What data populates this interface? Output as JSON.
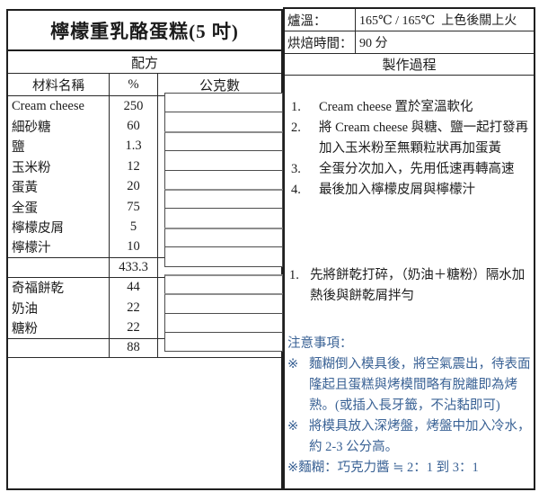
{
  "title": "檸檬重乳酪蛋糕(5 吋)",
  "oven": {
    "temp_label": "爐溫：",
    "temp_value": "165℃ / 165℃ 上色後關上火",
    "time_label": "烘焙時間：",
    "time_value": "90 分"
  },
  "recipe": {
    "header": "配方",
    "columns": {
      "name": "材料名稱",
      "percent": "%",
      "grams": "公克數"
    },
    "group1": {
      "rows": [
        {
          "name": "Cream cheese",
          "percent": "250"
        },
        {
          "name": "細砂糖",
          "percent": "60"
        },
        {
          "name": "鹽",
          "percent": "1.3"
        },
        {
          "name": "玉米粉",
          "percent": "12"
        },
        {
          "name": "蛋黃",
          "percent": "20"
        },
        {
          "name": "全蛋",
          "percent": "75"
        },
        {
          "name": "檸檬皮屑",
          "percent": "5"
        },
        {
          "name": "檸檬汁",
          "percent": "10"
        }
      ],
      "total": "433.3"
    },
    "group2": {
      "rows": [
        {
          "name": "奇福餅乾",
          "percent": "44"
        },
        {
          "name": "奶油",
          "percent": "22"
        },
        {
          "name": "糖粉",
          "percent": "22"
        }
      ],
      "total": "88"
    }
  },
  "process": {
    "header": "製作過程",
    "steps1": [
      {
        "num": "1.",
        "text": "Cream cheese 置於室溫軟化"
      },
      {
        "num": "2.",
        "text": "將 Cream cheese 與糖、鹽一起打發再加入玉米粉至無顆粒狀再加蛋黃"
      },
      {
        "num": "3.",
        "text": "全蛋分次加入，先用低速再轉高速"
      },
      {
        "num": "4.",
        "text": "最後加入檸檬皮屑與檸檬汁"
      }
    ],
    "steps2": [
      {
        "num": "1.",
        "text": "先將餅乾打碎，（奶油＋糖粉）隔水加熱後與餅乾屑拌勻"
      }
    ],
    "notes_title": "注意事項：",
    "notes": [
      {
        "marker": "※",
        "text": "麵糊倒入模具後，將空氣震出，待表面隆起且蛋糕與烤模間略有脫離即為烤熟。(或插入長牙籤，不沾黏即可)"
      },
      {
        "marker": "※",
        "text": "將模具放入深烤盤，烤盤中加入冷水，約 2-3 公分高。"
      },
      {
        "marker": "※",
        "text": "麵糊：巧克力醬 ≒ 2：1 到 3：1"
      }
    ]
  },
  "colors": {
    "note_blue": "#3a6295",
    "border_dark": "#1f1f1f"
  }
}
